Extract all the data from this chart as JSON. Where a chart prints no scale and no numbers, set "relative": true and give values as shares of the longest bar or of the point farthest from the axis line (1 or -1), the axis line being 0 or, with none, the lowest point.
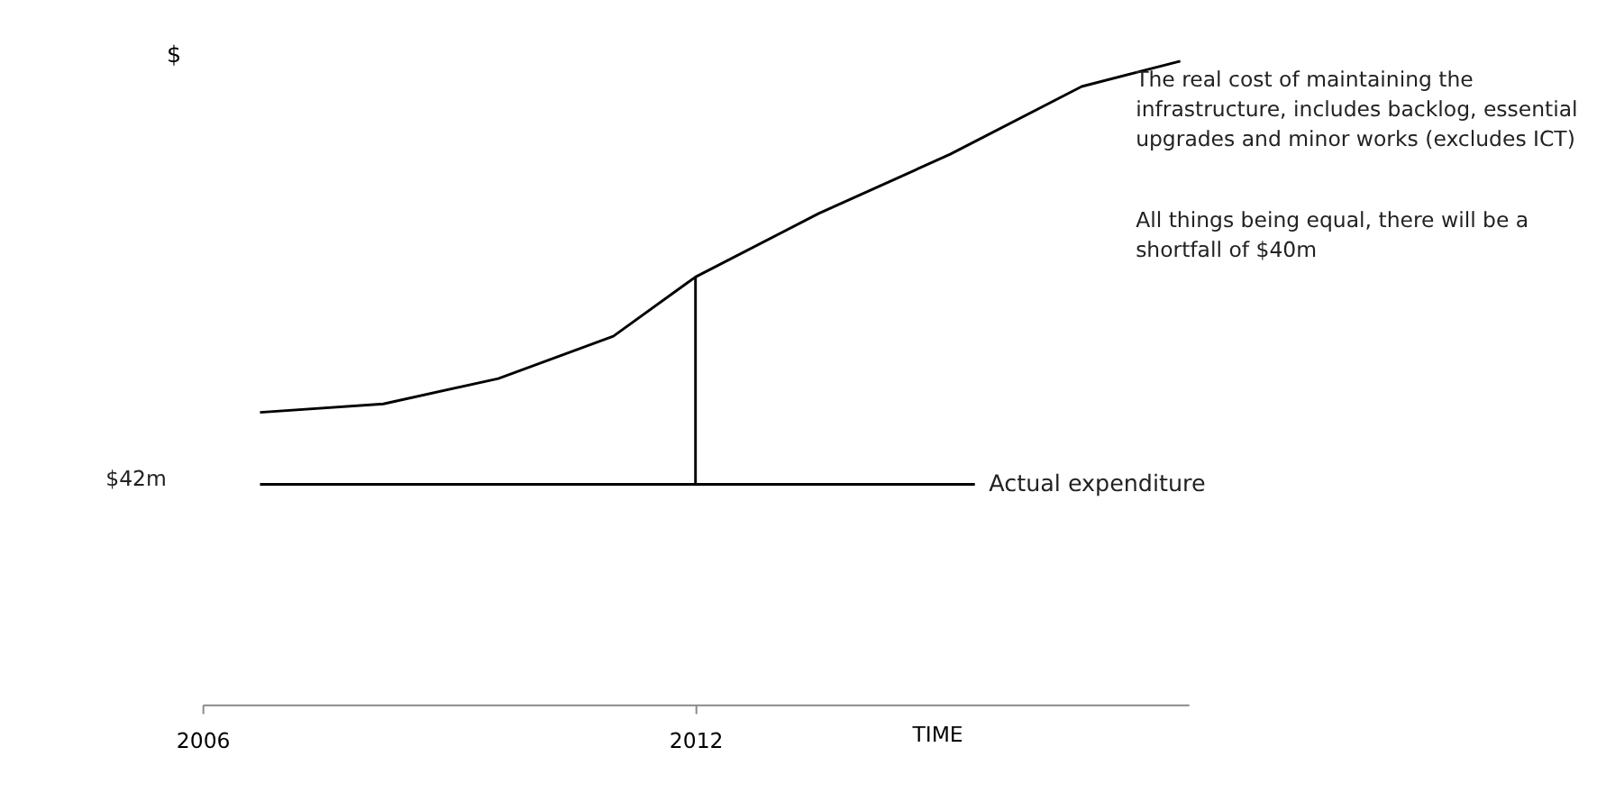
{
  "chart_data": {
    "type": "line",
    "xlabel": "TIME",
    "ylabel": "$",
    "relative": true,
    "xlim": [
      2006,
      2018
    ],
    "xticks": [
      2006,
      2012
    ],
    "grid": false,
    "marker": "none",
    "line_style": "solid",
    "series": [
      {
        "color": "#000000",
        "x": [
          2006.7,
          2008.2,
          2009.6,
          2011.0,
          2012.0,
          2013.5,
          2015.1,
          2016.7,
          2017.9
        ],
        "values": [
          0.17,
          0.19,
          0.25,
          0.35,
          0.49,
          0.64,
          0.78,
          0.94,
          1
        ]
      },
      {
        "name": "Actual expenditure",
        "color": "#000000",
        "x": [
          2006.7,
          2015.4
        ],
        "values": [
          0,
          0
        ]
      },
      {
        "color": "#000000",
        "x": [
          2012,
          2012
        ],
        "values": [
          0,
          0.49
        ]
      }
    ],
    "annotations": [
      "$42m",
      "The real cost of maintaining the infrastructure, includes backlog, essential upgrades and minor works (excludes ICT)",
      "All things being equal, there will be a shortfall of $40m"
    ]
  }
}
